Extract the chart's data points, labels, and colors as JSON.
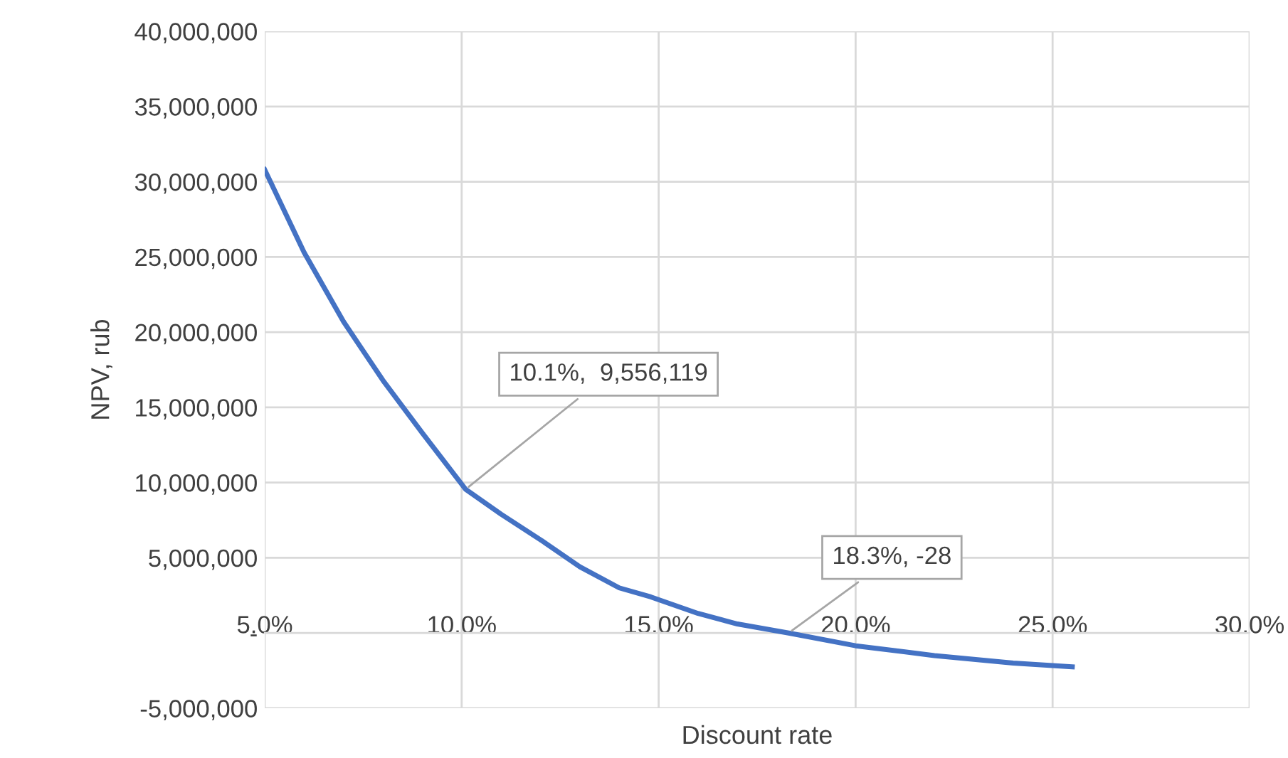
{
  "chart_data": {
    "type": "line",
    "xlabel": "Discount rate",
    "ylabel": "NPV, rub",
    "x": [
      5.0,
      6.0,
      7.0,
      8.0,
      9.0,
      10.1,
      11.0,
      12.0,
      13.0,
      14.0,
      14.8,
      16.0,
      17.0,
      18.3,
      20.0,
      22.0,
      24.0,
      25.5
    ],
    "series": [
      {
        "color": "#4472c4",
        "values": [
          30800000,
          25300000,
          20700000,
          16800000,
          13300000,
          9556119,
          7900000,
          6200000,
          4400000,
          3000000,
          2400000,
          1300000,
          600000,
          -28,
          -850000,
          -1500000,
          -2000000,
          -2250000
        ]
      }
    ],
    "xlim": [
      5,
      30
    ],
    "xticks": [
      {
        "value": 5,
        "label": "5.0%"
      },
      {
        "value": 10,
        "label": "10.0%"
      },
      {
        "value": 15,
        "label": "15.0%"
      },
      {
        "value": 20,
        "label": "20.0%"
      },
      {
        "value": 25,
        "label": "25.0%"
      },
      {
        "value": 30,
        "label": "30.0%"
      }
    ],
    "ylim": [
      -5000000,
      40000000
    ],
    "yticks": [
      {
        "value": -5000000,
        "label": "-5,000,000"
      },
      {
        "value": 0,
        "label": "-"
      },
      {
        "value": 5000000,
        "label": "5,000,000"
      },
      {
        "value": 10000000,
        "label": "10,000,000"
      },
      {
        "value": 15000000,
        "label": "15,000,000"
      },
      {
        "value": 20000000,
        "label": "20,000,000"
      },
      {
        "value": 25000000,
        "label": "25,000,000"
      },
      {
        "value": 30000000,
        "label": "30,000,000"
      },
      {
        "value": 35000000,
        "label": "35,000,000"
      },
      {
        "value": 40000000,
        "label": "40,000,000"
      }
    ],
    "annotations": [
      {
        "text": "10.1%,  9,556,119",
        "x": 10.1,
        "y": 9556119
      },
      {
        "text": "18.3%, -28",
        "x": 18.3,
        "y": -28
      }
    ],
    "grid": true,
    "legend": false,
    "marker": "none",
    "line_style": "solid"
  }
}
